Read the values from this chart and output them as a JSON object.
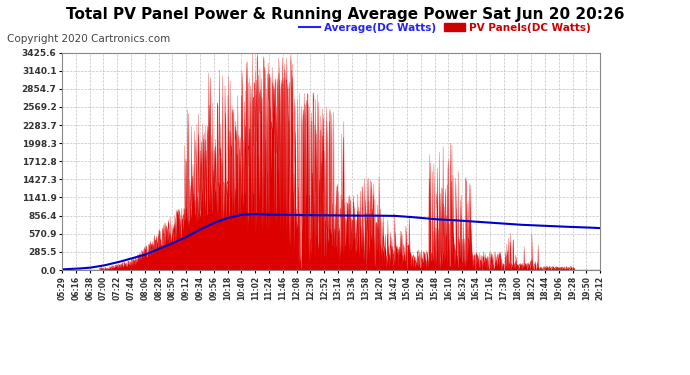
{
  "title": "Total PV Panel Power & Running Average Power Sat Jun 20 20:26",
  "copyright": "Copyright 2020 Cartronics.com",
  "legend_avg": "Average(DC Watts)",
  "legend_pv": "PV Panels(DC Watts)",
  "yticks": [
    0.0,
    285.5,
    570.9,
    856.4,
    1141.9,
    1427.3,
    1712.8,
    1998.3,
    2283.7,
    2569.2,
    2854.7,
    3140.1,
    3425.6
  ],
  "xtick_labels": [
    "05:29",
    "06:16",
    "06:38",
    "07:00",
    "07:22",
    "07:44",
    "08:06",
    "08:28",
    "08:50",
    "09:12",
    "09:34",
    "09:56",
    "10:18",
    "10:40",
    "11:02",
    "11:24",
    "11:46",
    "12:08",
    "12:30",
    "12:52",
    "13:14",
    "13:36",
    "13:58",
    "14:20",
    "14:42",
    "15:04",
    "15:26",
    "15:48",
    "16:10",
    "16:32",
    "16:54",
    "17:16",
    "17:38",
    "18:00",
    "18:22",
    "18:44",
    "19:06",
    "19:28",
    "19:50",
    "20:12"
  ],
  "ymax": 3425.6,
  "ymin": 0.0,
  "bg_color": "#ffffff",
  "plot_bg_color": "#ffffff",
  "grid_color": "#aaaaaa",
  "fill_color": "#dd0000",
  "title_color": "#000000",
  "title_fontsize": 11,
  "copyright_color": "#444444",
  "copyright_fontsize": 7.5,
  "avg_color": "#0000cc",
  "pv_color": "#dd0000",
  "avg_label_color": "#2222ff",
  "pv_label_color": "#cc0000"
}
